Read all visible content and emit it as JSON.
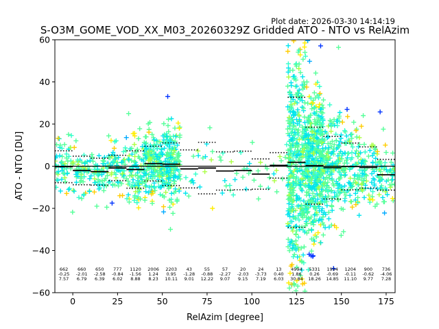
{
  "chart_data": {
    "type": "scatter",
    "title": "S-O3M_GOME_VOD_XX_M03_20260329Z Gridded ATO - NTO vs RelAzim",
    "plot_date": "Plot date: 2026-03-30 14:14:19",
    "xlabel": "RelAzim [degree]",
    "ylabel": "ATO - NTO [DU]",
    "xlim": [
      -10,
      180
    ],
    "ylim": [
      -60,
      60
    ],
    "xticks": [
      0,
      25,
      50,
      75,
      100,
      125,
      150,
      175
    ],
    "yticks": [
      -60,
      -40,
      -20,
      0,
      20,
      40,
      60
    ],
    "grid": false,
    "bin_width": 10,
    "bins": [
      {
        "center": -5,
        "n": "662",
        "mean": -0.25,
        "sd": 7.57,
        "mean_label": "-0.25",
        "sd_label": "7.57"
      },
      {
        "center": 5,
        "n": "660",
        "mean": -2.01,
        "sd": 6.79,
        "mean_label": "-2.01",
        "sd_label": "6.79"
      },
      {
        "center": 15,
        "n": "650",
        "mean": -2.58,
        "sd": 6.39,
        "mean_label": "-2.58",
        "sd_label": "6.39"
      },
      {
        "center": 25,
        "n": "777",
        "mean": -0.84,
        "sd": 6.02,
        "mean_label": "-0.84",
        "sd_label": "6.02"
      },
      {
        "center": 35,
        "n": "1120",
        "mean": -1.56,
        "sd": 8.88,
        "mean_label": "-1.56",
        "sd_label": "8.88"
      },
      {
        "center": 45,
        "n": "2006",
        "mean": 1.24,
        "sd": 8.23,
        "mean_label": "1.24",
        "sd_label": "8.23"
      },
      {
        "center": 55,
        "n": "2203",
        "mean": 0.95,
        "sd": 10.11,
        "mean_label": "0.95",
        "sd_label": "10.11"
      },
      {
        "center": 65,
        "n": "43",
        "mean": -1.28,
        "sd": 9.01,
        "mean_label": "-1.28",
        "sd_label": "9.01"
      },
      {
        "center": 75,
        "n": "55",
        "mean": -0.88,
        "sd": 12.22,
        "mean_label": "-0.88",
        "sd_label": "12.22"
      },
      {
        "center": 85,
        "n": "57",
        "mean": -2.27,
        "sd": 9.07,
        "mean_label": "-2.27",
        "sd_label": "9.07"
      },
      {
        "center": 95,
        "n": "20",
        "mean": -2.03,
        "sd": 9.15,
        "mean_label": "-2.03",
        "sd_label": "9.15"
      },
      {
        "center": 105,
        "n": "24",
        "mean": -3.73,
        "sd": 7.19,
        "mean_label": "-3.73",
        "sd_label": "7.19"
      },
      {
        "center": 115,
        "n": "13",
        "mean": 0.4,
        "sd": 6.03,
        "mean_label": "0.40",
        "sd_label": "6.03"
      },
      {
        "center": 125,
        "n": "4994",
        "mean": 1.86,
        "sd": 30.84,
        "mean_label": "1.86",
        "sd_label": "30.84"
      },
      {
        "center": 135,
        "n": "5331",
        "mean": 0.26,
        "sd": 18.26,
        "mean_label": "0.26",
        "sd_label": "18.26"
      },
      {
        "center": 145,
        "n": "1994",
        "mean": -0.69,
        "sd": 14.85,
        "mean_label": "-0.69",
        "sd_label": "14.85"
      },
      {
        "center": 155,
        "n": "1204",
        "mean": -0.11,
        "sd": 11.1,
        "mean_label": "-0.11",
        "sd_label": "11.10"
      },
      {
        "center": 165,
        "n": "900",
        "mean": -0.62,
        "sd": 9.77,
        "mean_label": "-0.62",
        "sd_label": "9.77"
      },
      {
        "center": 175,
        "n": "736",
        "mean": -4.06,
        "sd": 7.28,
        "mean_label": "-4.06",
        "sd_label": "7.28"
      }
    ],
    "scatter_colors": [
      "#0033ff",
      "#00aaff",
      "#00e5ee",
      "#33ffcc",
      "#55ff99",
      "#aaff44",
      "#ffee00",
      "#ffcc00"
    ],
    "line_color": "#000000"
  }
}
